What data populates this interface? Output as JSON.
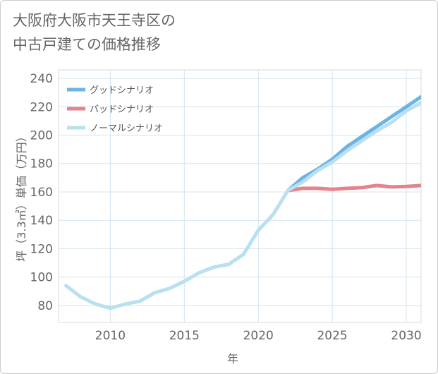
{
  "title_lines": [
    "大阪府大阪市天王寺区の",
    "中古戸建ての価格推移"
  ],
  "chart_data": {
    "type": "line",
    "title": "大阪府大阪市天王寺区の中古戸建ての価格推移",
    "xlabel": "年",
    "ylabel": "坪（3.3㎡）単価（万円）",
    "xlim": [
      2006.5,
      2031
    ],
    "ylim": [
      68,
      246
    ],
    "xticks": [
      2010,
      2015,
      2020,
      2025,
      2030
    ],
    "yticks": [
      80,
      100,
      120,
      140,
      160,
      180,
      200,
      220,
      240
    ],
    "grid": true,
    "legend_position": "top-left",
    "series": [
      {
        "name": "グッドシナリオ",
        "color": "#6cb4e4",
        "x": [
          2022,
          2023,
          2024,
          2025,
          2026,
          2027,
          2028,
          2029,
          2030,
          2031
        ],
        "values": [
          161,
          170,
          176,
          183,
          192,
          199,
          206,
          213,
          220,
          227
        ]
      },
      {
        "name": "バッドシナリオ",
        "color": "#e3838c",
        "x": [
          2022,
          2023,
          2024,
          2025,
          2026,
          2027,
          2028,
          2029,
          2030,
          2031
        ],
        "values": [
          161,
          162.5,
          162.5,
          161.8,
          162.5,
          163,
          164.5,
          163.5,
          163.8,
          164.5
        ]
      },
      {
        "name": "ノーマルシナリオ",
        "color": "#b8e0f0",
        "x": [
          2007,
          2008,
          2009,
          2010,
          2011,
          2012,
          2013,
          2014,
          2015,
          2016,
          2017,
          2018,
          2019,
          2020,
          2021,
          2022,
          2023,
          2024,
          2025,
          2026,
          2027,
          2028,
          2029,
          2030,
          2031
        ],
        "values": [
          94,
          86,
          81,
          78,
          81,
          83,
          89,
          92,
          97,
          103,
          107,
          109,
          116,
          133,
          144,
          161,
          167,
          175,
          181,
          189,
          196,
          203,
          209,
          217,
          223
        ]
      }
    ]
  }
}
